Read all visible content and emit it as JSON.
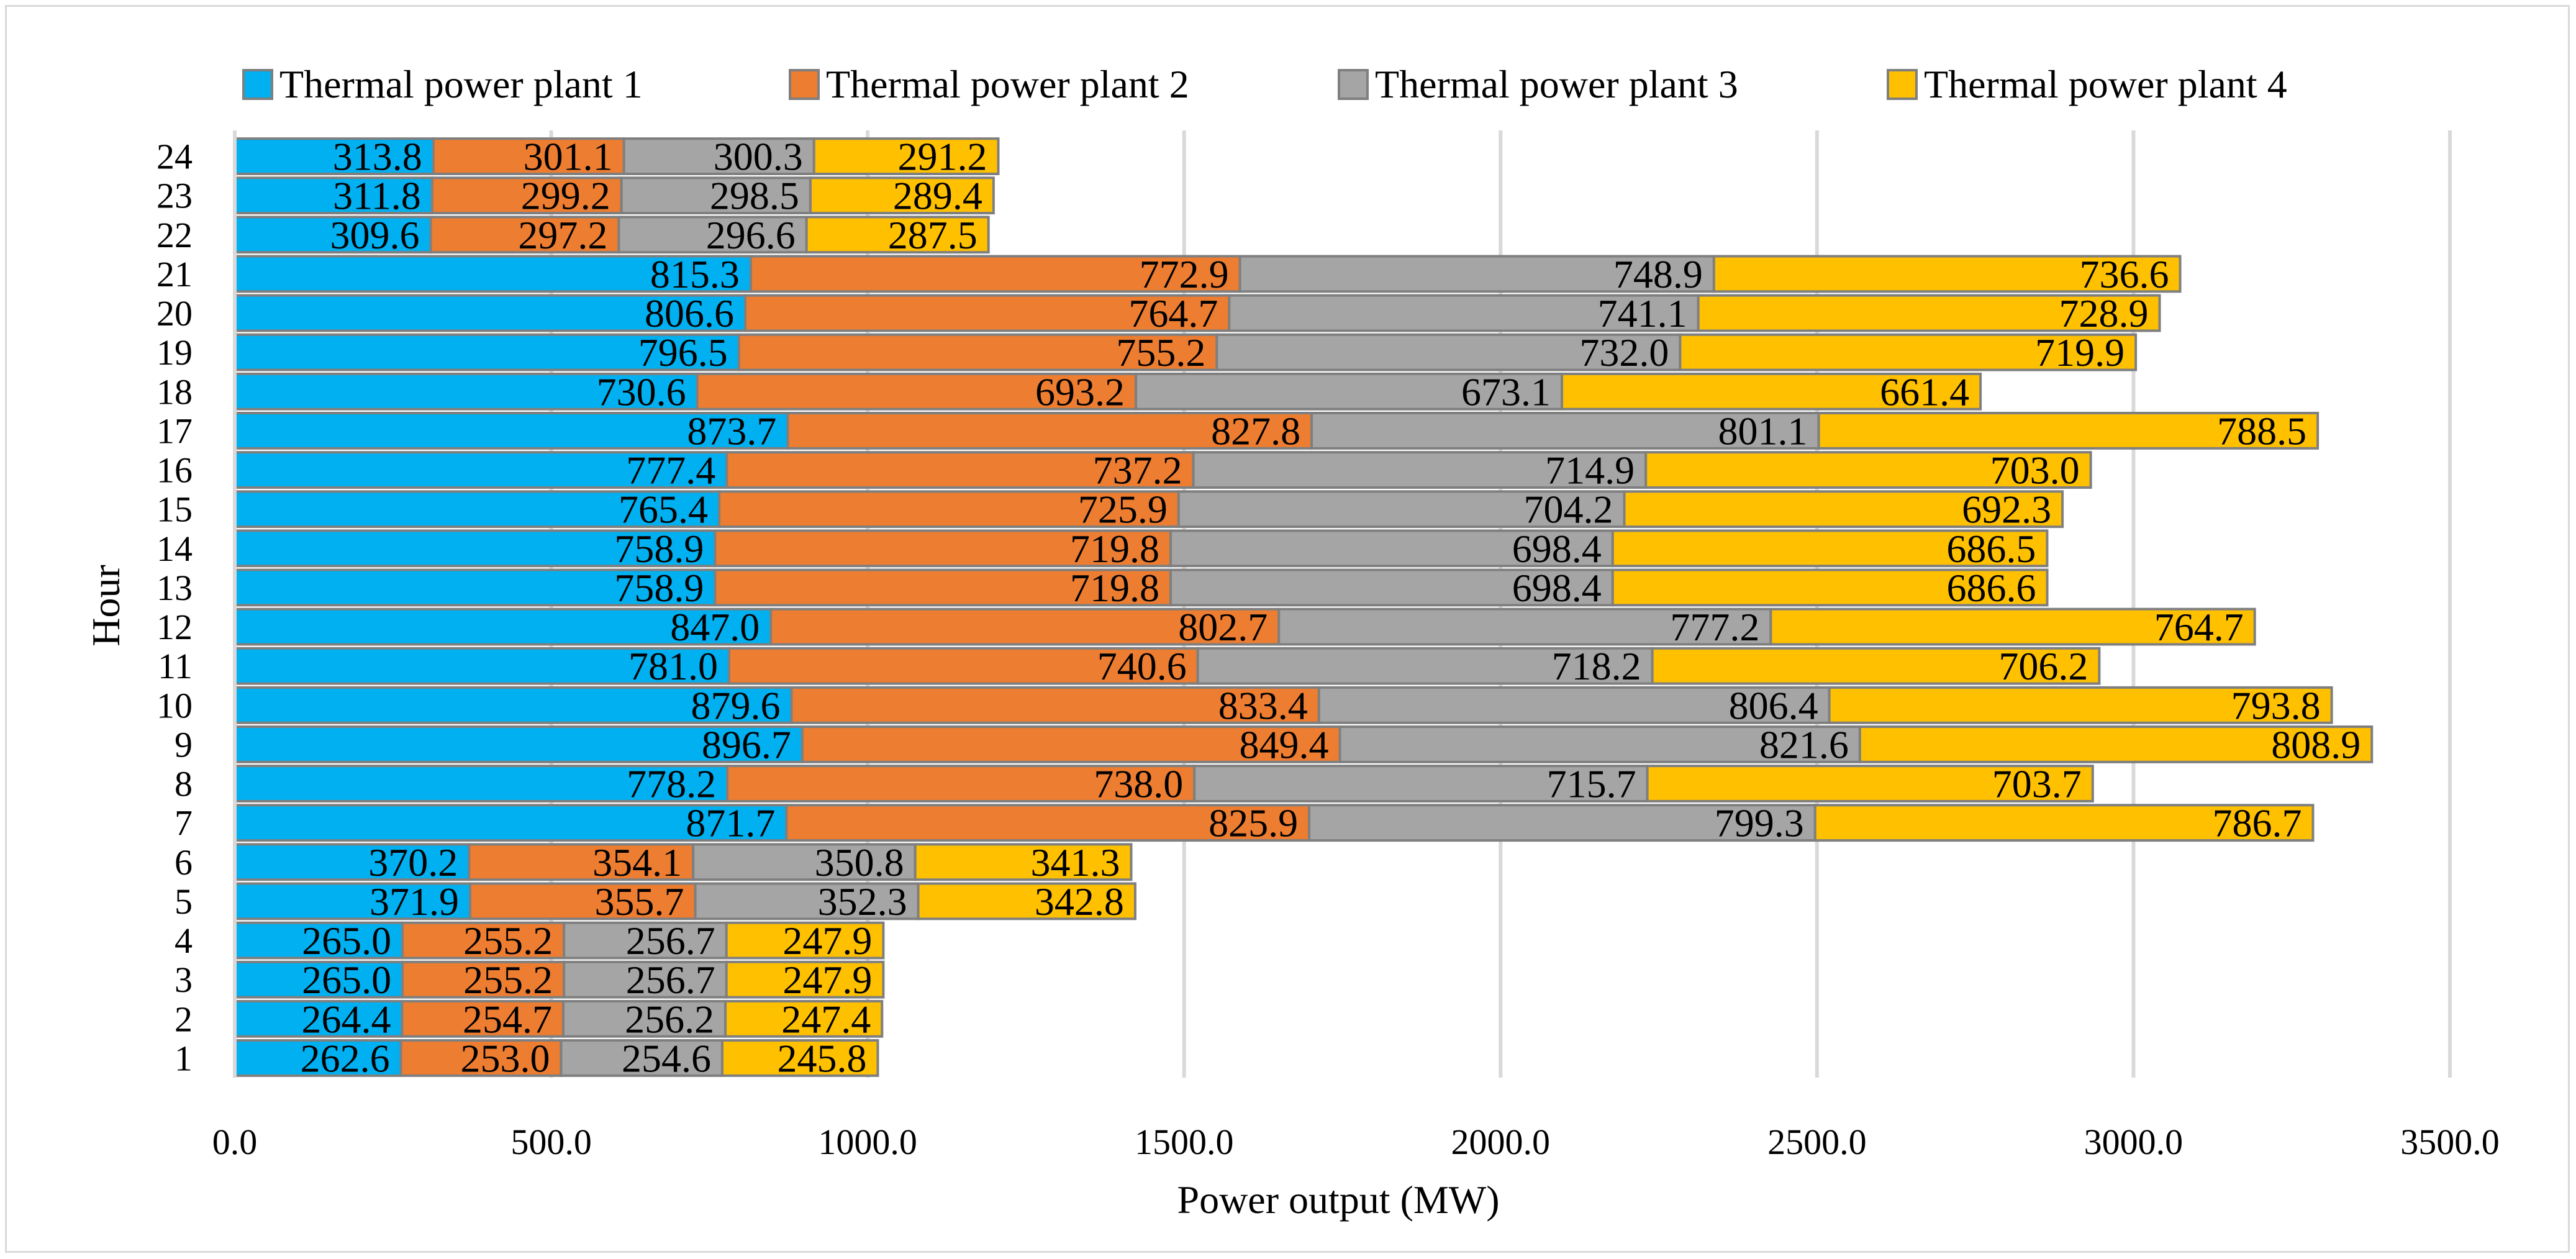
{
  "chart_data": {
    "type": "bar",
    "orientation": "horizontal",
    "stacked": true,
    "title": "",
    "xlabel": "Power output (MW)",
    "ylabel": "Hour",
    "xlim": [
      0,
      3500
    ],
    "x_ticks": [
      "0.0",
      "500.0",
      "1000.0",
      "1500.0",
      "2000.0",
      "2500.0",
      "3000.0",
      "3500.0"
    ],
    "x_tick_values": [
      0,
      500,
      1000,
      1500,
      2000,
      2500,
      3000,
      3500
    ],
    "grid": true,
    "legend_position": "top",
    "categories": [
      "1",
      "2",
      "3",
      "4",
      "5",
      "6",
      "7",
      "8",
      "9",
      "10",
      "11",
      "12",
      "13",
      "14",
      "15",
      "16",
      "17",
      "18",
      "19",
      "20",
      "21",
      "22",
      "23",
      "24"
    ],
    "series": [
      {
        "name": "Thermal power plant 1",
        "color": "#00b0f0",
        "values": [
          262.6,
          264.4,
          265.0,
          265.0,
          371.9,
          370.2,
          871.7,
          778.2,
          896.7,
          879.6,
          781.0,
          847.0,
          758.9,
          758.9,
          765.4,
          777.4,
          873.7,
          730.6,
          796.5,
          806.6,
          815.3,
          309.6,
          311.8,
          313.8
        ],
        "labels": [
          "262.6",
          "264.4",
          "265.0",
          "265.0",
          "371.9",
          "370.2",
          "871.7",
          "778.2",
          "896.7",
          "879.6",
          "781.0",
          "847.0",
          "758.9",
          "758.9",
          "765.4",
          "777.4",
          "873.7",
          "730.6",
          "796.5",
          "806.6",
          "815.3",
          "309.6",
          "311.8",
          "313.8"
        ]
      },
      {
        "name": "Thermal power plant 2",
        "color": "#ed7d31",
        "values": [
          253.0,
          254.7,
          255.2,
          255.2,
          355.7,
          354.1,
          825.9,
          738.0,
          849.4,
          833.4,
          740.6,
          802.7,
          719.8,
          719.8,
          725.9,
          737.2,
          827.8,
          693.2,
          755.2,
          764.7,
          772.9,
          297.2,
          299.2,
          301.1
        ],
        "labels": [
          "253.0",
          "254.7",
          "255.2",
          "255.2",
          "355.7",
          "354.1",
          "825.9",
          "738.0",
          "849.4",
          "833.4",
          "740.6",
          "802.7",
          "719.8",
          "719.8",
          "725.9",
          "737.2",
          "827.8",
          "693.2",
          "755.2",
          "764.7",
          "772.9",
          "297.2",
          "299.2",
          "301.1"
        ]
      },
      {
        "name": "Thermal power plant 3",
        "color": "#a5a5a5",
        "values": [
          254.6,
          256.2,
          256.7,
          256.7,
          352.3,
          350.8,
          799.3,
          715.7,
          821.6,
          806.4,
          718.2,
          777.2,
          698.4,
          698.4,
          704.2,
          714.9,
          801.1,
          673.1,
          732.0,
          741.1,
          748.9,
          296.6,
          298.5,
          300.3
        ],
        "labels": [
          "254.6",
          "256.2",
          "256.7",
          "256.7",
          "352.3",
          "350.8",
          "799.3",
          "715.7",
          "821.6",
          "806.4",
          "718.2",
          "777.2",
          "698.4",
          "698.4",
          "704.2",
          "714.9",
          "801.1",
          "673.1",
          "732.0",
          "741.1",
          "748.9",
          "296.6",
          "298.5",
          "300.3"
        ]
      },
      {
        "name": "Thermal power plant 4",
        "color": "#ffc000",
        "values": [
          245.8,
          247.4,
          247.9,
          247.9,
          342.8,
          341.3,
          786.7,
          703.7,
          808.9,
          793.8,
          706.2,
          764.7,
          686.6,
          686.5,
          692.3,
          703.0,
          788.5,
          661.4,
          719.9,
          728.9,
          736.6,
          287.5,
          289.4,
          291.2
        ],
        "labels": [
          "245.8",
          "247.4",
          "247.9",
          "247.9",
          "342.8",
          "341.3",
          "786.7",
          "703.7",
          "808.9",
          "793.8",
          "706.2",
          "764.7",
          "686.6",
          "686.5",
          "692.3",
          "703.0",
          "788.5",
          "661.4",
          "719.9",
          "728.9",
          "736.6",
          "287.5",
          "289.4",
          "291.2"
        ]
      }
    ]
  }
}
